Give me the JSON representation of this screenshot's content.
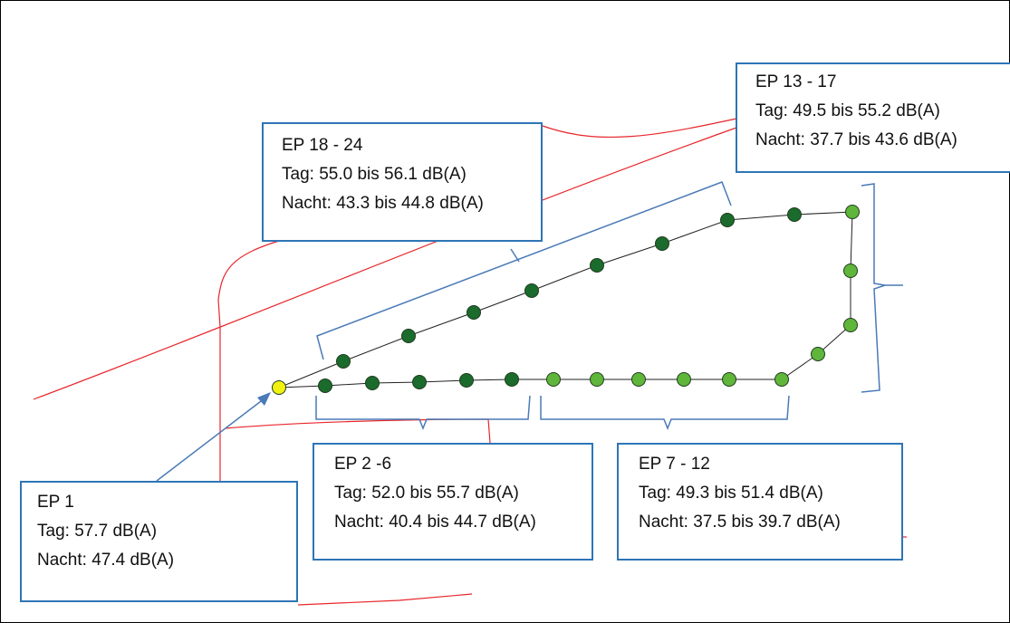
{
  "colors": {
    "road": "#e8262b",
    "bracket": "#4a7ab7",
    "box_border": "#2e75b6",
    "point_dark": "#1b6b2c",
    "point_light": "#5fb63a",
    "point_ep1": "#f2f20f",
    "path_line": "#222222"
  },
  "labels": {
    "ep1": {
      "title": "EP 1",
      "tag": "Tag: 57.7 dB(A)",
      "nacht": "Nacht: 47.4 dB(A)"
    },
    "ep2_6": {
      "title": "EP 2 -6",
      "tag": "Tag: 52.0 bis 55.7 dB(A)",
      "nacht": "Nacht: 40.4 bis 44.7 dB(A)"
    },
    "ep7_12": {
      "title": "EP 7 - 12",
      "tag": "Tag: 49.3 bis 51.4 dB(A)",
      "nacht": "Nacht: 37.5 bis 39.7 dB(A)"
    },
    "ep13_17": {
      "title": "EP 13 - 17",
      "tag": "Tag: 49.5 bis 55.2 dB(A)",
      "nacht": "Nacht: 37.7 bis 43.6 dB(A)"
    },
    "ep18_24": {
      "title": "EP 18 - 24",
      "tag": "Tag: 55.0 bis 56.1 dB(A)",
      "nacht": "Nacht: 43.3 bis 44.8 dB(A)"
    }
  },
  "points": [
    {
      "id": "EP 1",
      "color": "yellow"
    },
    {
      "id": "EP 2",
      "color": "dark"
    },
    {
      "id": "EP 3",
      "color": "dark"
    },
    {
      "id": "EP 4",
      "color": "dark"
    },
    {
      "id": "EP 5",
      "color": "dark"
    },
    {
      "id": "EP 6",
      "color": "dark"
    },
    {
      "id": "EP 7",
      "color": "light"
    },
    {
      "id": "EP 8",
      "color": "light"
    },
    {
      "id": "EP 9",
      "color": "light"
    },
    {
      "id": "EP 10",
      "color": "light"
    },
    {
      "id": "EP 11",
      "color": "light"
    },
    {
      "id": "EP 12",
      "color": "light"
    },
    {
      "id": "EP 13",
      "color": "light"
    },
    {
      "id": "EP 14",
      "color": "light"
    },
    {
      "id": "EP 15",
      "color": "light"
    },
    {
      "id": "EP 16",
      "color": "light"
    },
    {
      "id": "EP 17",
      "color": "dark"
    },
    {
      "id": "EP 18",
      "color": "dark"
    },
    {
      "id": "EP 19",
      "color": "dark"
    },
    {
      "id": "EP 20",
      "color": "dark"
    },
    {
      "id": "EP 21",
      "color": "dark"
    },
    {
      "id": "EP 22",
      "color": "dark"
    },
    {
      "id": "EP 23",
      "color": "dark"
    },
    {
      "id": "EP 24",
      "color": "dark"
    }
  ]
}
